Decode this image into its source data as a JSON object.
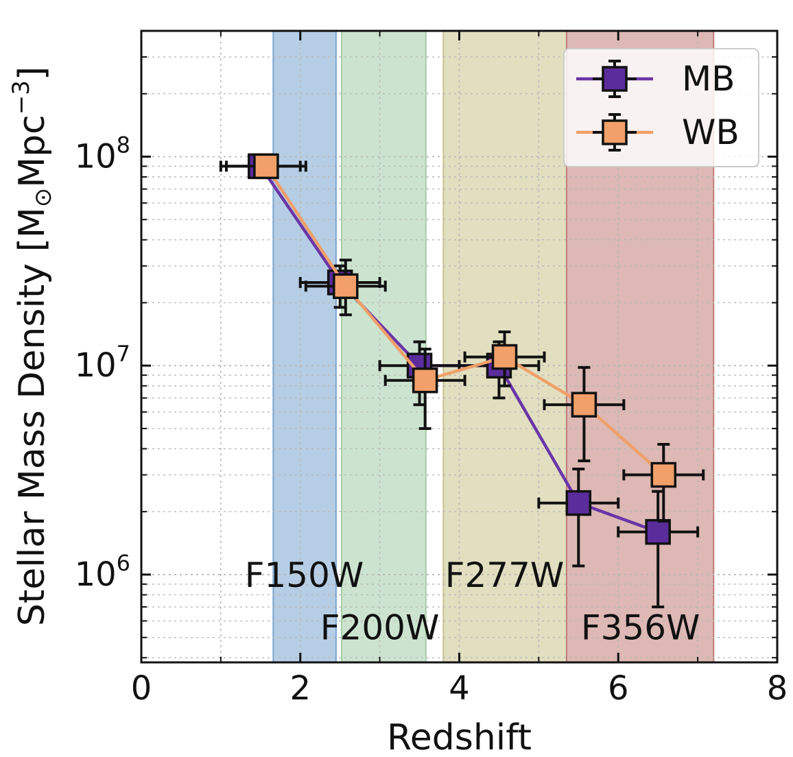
{
  "chart_data": {
    "type": "scatter",
    "title": "",
    "xlabel": "Redshift",
    "ylabel": "Stellar Mass Density [M",
    "ylabel_sub": "⊙",
    "ylabel_unit": "Mpc",
    "ylabel_exp": "−3",
    "ylabel_close": "]",
    "xlim": [
      0,
      8
    ],
    "ylim": [
      380000,
      400000000
    ],
    "yscale": "log",
    "grid": true,
    "legend_position": "top-right",
    "x_ticks": [
      {
        "value": 0,
        "label": "0"
      },
      {
        "value": 2,
        "label": "2"
      },
      {
        "value": 4,
        "label": "4"
      },
      {
        "value": 6,
        "label": "6"
      },
      {
        "value": 8,
        "label": "8"
      }
    ],
    "y_ticks": [
      {
        "value": 1000000,
        "base": "10",
        "exp": "6"
      },
      {
        "value": 10000000,
        "base": "10",
        "exp": "7"
      },
      {
        "value": 100000000,
        "base": "10",
        "exp": "8"
      }
    ],
    "bands": [
      {
        "label": "F150W",
        "x0": 1.66,
        "x1": 2.45,
        "color": "#7aa5cf",
        "label_x": 2.05,
        "label_y": 1000000
      },
      {
        "label": "F200W",
        "x0": 2.52,
        "x1": 3.58,
        "color": "#a3cda7",
        "label_x": 3.0,
        "label_y": 560000
      },
      {
        "label": "F277W",
        "x0": 3.8,
        "x1": 5.35,
        "color": "#c8c48c",
        "label_x": 4.57,
        "label_y": 1000000
      },
      {
        "label": "F356W",
        "x0": 5.35,
        "x1": 7.2,
        "color": "#c17e77",
        "label_x": 6.28,
        "label_y": 560000
      }
    ],
    "series": [
      {
        "name": "MB",
        "color": "#5b2c9c",
        "line_color": "#6a35a8",
        "points": [
          {
            "x": 1.5,
            "y": 90000000,
            "xerr": 0.5,
            "ylo": 80000000,
            "yhi": 100000000
          },
          {
            "x": 2.5,
            "y": 25000000,
            "xerr": 0.5,
            "ylo": 19000000,
            "yhi": 30000000
          },
          {
            "x": 3.5,
            "y": 10000000,
            "xerr": 0.5,
            "ylo": 6500000,
            "yhi": 13000000
          },
          {
            "x": 4.5,
            "y": 10000000,
            "xerr": 0.5,
            "ylo": 7000000,
            "yhi": 13000000
          },
          {
            "x": 5.5,
            "y": 2200000,
            "xerr": 0.5,
            "ylo": 1100000,
            "yhi": 3200000
          },
          {
            "x": 6.5,
            "y": 1600000,
            "xerr": 0.5,
            "ylo": 700000,
            "yhi": 2500000
          }
        ]
      },
      {
        "name": "WB",
        "color": "#f0a068",
        "line_color": "#f0a068",
        "points": [
          {
            "x": 1.57,
            "y": 90000000,
            "xerr": 0.5,
            "ylo": 80000000,
            "yhi": 100000000
          },
          {
            "x": 2.57,
            "y": 24000000,
            "xerr": 0.5,
            "ylo": 17500000,
            "yhi": 32000000
          },
          {
            "x": 3.57,
            "y": 8500000,
            "xerr": 0.5,
            "ylo": 5000000,
            "yhi": 12000000
          },
          {
            "x": 4.57,
            "y": 11000000,
            "xerr": 0.5,
            "ylo": 8000000,
            "yhi": 14500000
          },
          {
            "x": 5.57,
            "y": 6500000,
            "xerr": 0.5,
            "ylo": 3500000,
            "yhi": 9800000
          },
          {
            "x": 6.57,
            "y": 3000000,
            "xerr": 0.5,
            "ylo": 1800000,
            "yhi": 4200000
          }
        ]
      }
    ]
  }
}
